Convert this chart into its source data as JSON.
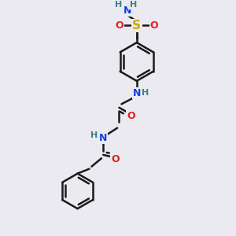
{
  "bg_color": "#eaeaf0",
  "bond_color": "#1a1a1a",
  "bond_width": 1.8,
  "atom_colors": {
    "N": "#1040e0",
    "O": "#e02020",
    "S": "#ccaa00",
    "H_gray": "#408080"
  },
  "font_size_heavy": 9,
  "font_size_H": 8,
  "xlim": [
    0,
    10
  ],
  "ylim": [
    0,
    10
  ]
}
